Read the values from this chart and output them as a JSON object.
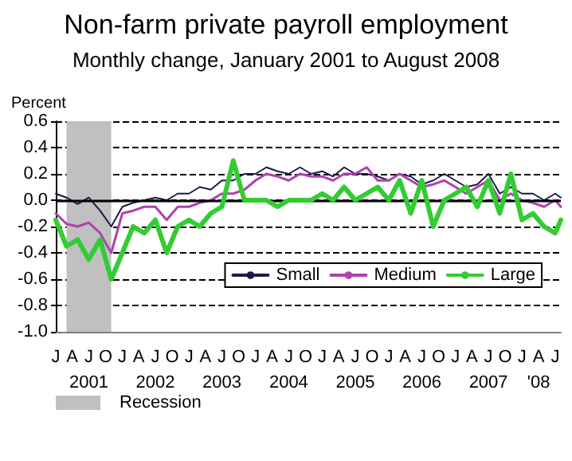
{
  "chart_data": {
    "type": "line",
    "title": "Non-farm private payroll employment",
    "subtitle": "Monthly change, January 2001 to August 2008",
    "ylabel": "Percent",
    "x": [
      "2001-01",
      "2001-03",
      "2001-05",
      "2001-07",
      "2001-09",
      "2001-11",
      "2002-01",
      "2002-03",
      "2002-05",
      "2002-07",
      "2002-09",
      "2002-11",
      "2003-01",
      "2003-03",
      "2003-05",
      "2003-07",
      "2003-09",
      "2003-11",
      "2004-01",
      "2004-03",
      "2004-05",
      "2004-07",
      "2004-09",
      "2004-11",
      "2005-01",
      "2005-03",
      "2005-05",
      "2005-07",
      "2005-09",
      "2005-11",
      "2006-01",
      "2006-03",
      "2006-05",
      "2006-07",
      "2006-09",
      "2006-11",
      "2007-01",
      "2007-03",
      "2007-05",
      "2007-07",
      "2007-09",
      "2007-11",
      "2008-01",
      "2008-03",
      "2008-05",
      "2008-07",
      "2008-08"
    ],
    "series": [
      {
        "name": "Small",
        "color": "#1a1a4a",
        "values": [
          0.05,
          0.02,
          -0.03,
          0.02,
          -0.08,
          -0.2,
          -0.05,
          -0.02,
          0.0,
          0.02,
          0.0,
          0.05,
          0.05,
          0.1,
          0.08,
          0.15,
          0.15,
          0.2,
          0.2,
          0.25,
          0.22,
          0.2,
          0.25,
          0.2,
          0.22,
          0.18,
          0.25,
          0.2,
          0.2,
          0.18,
          0.15,
          0.2,
          0.18,
          0.12,
          0.15,
          0.2,
          0.15,
          0.1,
          0.12,
          0.2,
          0.05,
          0.1,
          0.05,
          0.05,
          0.0,
          0.05,
          0.02
        ]
      },
      {
        "name": "Medium",
        "color": "#b040b0",
        "values": [
          -0.1,
          -0.18,
          -0.2,
          -0.17,
          -0.25,
          -0.4,
          -0.1,
          -0.08,
          -0.05,
          -0.05,
          -0.15,
          -0.05,
          -0.05,
          -0.02,
          0.0,
          0.05,
          0.05,
          0.08,
          0.15,
          0.2,
          0.18,
          0.15,
          0.2,
          0.18,
          0.18,
          0.15,
          0.2,
          0.2,
          0.25,
          0.15,
          0.15,
          0.2,
          0.15,
          0.1,
          0.12,
          0.15,
          0.1,
          0.05,
          0.1,
          0.15,
          0.0,
          0.05,
          0.0,
          -0.02,
          -0.05,
          0.0,
          -0.05
        ]
      },
      {
        "name": "Large",
        "color": "#33cc33",
        "values": [
          -0.15,
          -0.35,
          -0.3,
          -0.45,
          -0.3,
          -0.6,
          -0.4,
          -0.2,
          -0.25,
          -0.15,
          -0.4,
          -0.2,
          -0.15,
          -0.2,
          -0.1,
          -0.05,
          0.3,
          0.0,
          0.0,
          0.0,
          -0.05,
          0.0,
          0.0,
          0.0,
          0.05,
          0.0,
          0.1,
          0.0,
          0.05,
          0.1,
          0.0,
          0.15,
          -0.1,
          0.15,
          -0.2,
          0.0,
          0.05,
          0.1,
          -0.05,
          0.15,
          -0.1,
          0.2,
          -0.15,
          -0.1,
          -0.2,
          -0.25,
          -0.15
        ]
      }
    ],
    "xlim": [
      "2001-01",
      "2008-08"
    ],
    "xticks": [
      {
        "value": "2001-01",
        "label": "J"
      },
      {
        "value": "2001-04",
        "label": "A"
      },
      {
        "value": "2001-07",
        "label": "J\n2001"
      },
      {
        "value": "2001-10",
        "label": "O"
      },
      {
        "value": "2002-01",
        "label": "J"
      },
      {
        "value": "2002-04",
        "label": "A"
      },
      {
        "value": "2002-07",
        "label": "J\n2002"
      },
      {
        "value": "2002-10",
        "label": "O"
      },
      {
        "value": "2003-01",
        "label": "J"
      },
      {
        "value": "2003-04",
        "label": "A"
      },
      {
        "value": "2003-07",
        "label": "J\n2003"
      },
      {
        "value": "2003-10",
        "label": "O"
      },
      {
        "value": "2004-01",
        "label": "J"
      },
      {
        "value": "2004-04",
        "label": "A"
      },
      {
        "value": "2004-07",
        "label": "J\n2004"
      },
      {
        "value": "2004-10",
        "label": "O"
      },
      {
        "value": "2005-01",
        "label": "J"
      },
      {
        "value": "2005-04",
        "label": "A"
      },
      {
        "value": "2005-07",
        "label": "J\n2005"
      },
      {
        "value": "2005-10",
        "label": "O"
      },
      {
        "value": "2006-01",
        "label": "J"
      },
      {
        "value": "2006-04",
        "label": "A"
      },
      {
        "value": "2006-07",
        "label": "J\n2006"
      },
      {
        "value": "2006-10",
        "label": "O"
      },
      {
        "value": "2007-01",
        "label": "J"
      },
      {
        "value": "2007-04",
        "label": "A"
      },
      {
        "value": "2007-07",
        "label": "J\n2007"
      },
      {
        "value": "2007-10",
        "label": "O"
      },
      {
        "value": "2008-01",
        "label": "J"
      },
      {
        "value": "2008-04",
        "label": "A\n'08"
      },
      {
        "value": "2008-07",
        "label": "J"
      }
    ],
    "ylim": [
      -1.0,
      0.6
    ],
    "yticks": [
      {
        "value": -1.0,
        "label": "-1.0"
      },
      -0.8,
      -0.6,
      -0.4,
      -0.2,
      {
        "value": 0,
        "label": "0.0"
      },
      0.2,
      0.4,
      0.6
    ],
    "bands": [
      {
        "axis": "x",
        "from": "2001-03",
        "to": "2001-11",
        "label": "Recession",
        "color": "#c0c0c0"
      }
    ],
    "ref_lines": [
      {
        "axis": "y",
        "value": 0,
        "color": "#000000"
      }
    ],
    "grid": "y",
    "legend": "bottom right",
    "marker": "none",
    "line_style": "solid"
  }
}
